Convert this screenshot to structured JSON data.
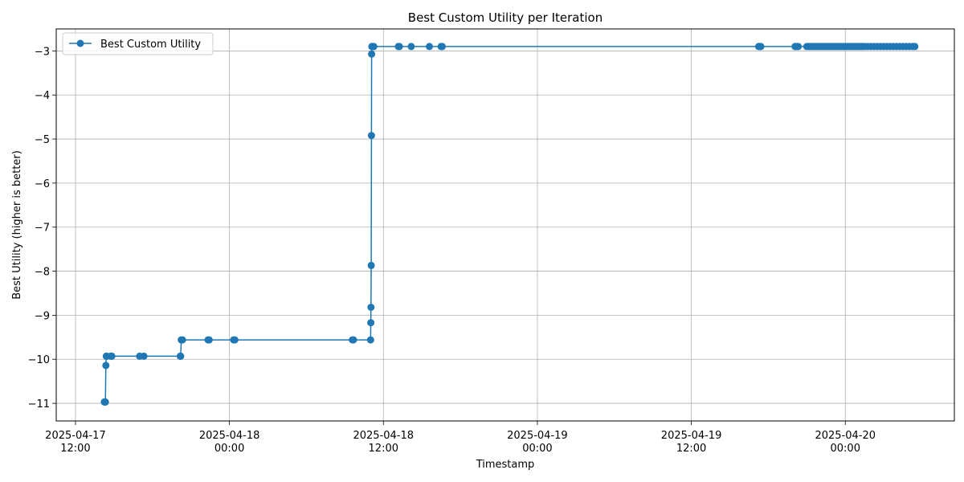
{
  "chart_data": {
    "type": "line",
    "title": "Best Custom Utility per Iteration",
    "xlabel": "Timestamp",
    "ylabel": "Best Utility (higher is better)",
    "x_axis_type": "datetime",
    "xlim": [
      "2025-04-17T10:30",
      "2025-04-20T08:30"
    ],
    "ylim": [
      -11.4,
      -2.5
    ],
    "grid": true,
    "legend_position": "top-left",
    "color": "#1f77b4",
    "x_ticks": [
      {
        "value": "2025-04-17T12:00",
        "line1": "2025-04-17",
        "line2": "12:00"
      },
      {
        "value": "2025-04-18T00:00",
        "line1": "2025-04-18",
        "line2": "00:00"
      },
      {
        "value": "2025-04-18T12:00",
        "line1": "2025-04-18",
        "line2": "12:00"
      },
      {
        "value": "2025-04-19T00:00",
        "line1": "2025-04-19",
        "line2": "00:00"
      },
      {
        "value": "2025-04-19T12:00",
        "line1": "2025-04-19",
        "line2": "12:00"
      },
      {
        "value": "2025-04-20T00:00",
        "line1": "2025-04-20",
        "line2": "00:00"
      }
    ],
    "y_ticks": [
      {
        "value": -11,
        "label": "−11"
      },
      {
        "value": -10,
        "label": "−10"
      },
      {
        "value": -9,
        "label": "−9"
      },
      {
        "value": -8,
        "label": "−8"
      },
      {
        "value": -7,
        "label": "−7"
      },
      {
        "value": -6,
        "label": "−6"
      },
      {
        "value": -5,
        "label": "−5"
      },
      {
        "value": -4,
        "label": "−4"
      },
      {
        "value": -3,
        "label": "−3"
      }
    ],
    "series": [
      {
        "name": "Best Custom Utility",
        "x": [
          "2025-04-17T14:15",
          "2025-04-17T14:18",
          "2025-04-17T14:20",
          "2025-04-17T14:22",
          "2025-04-17T14:24",
          "2025-04-17T14:26",
          "2025-04-17T14:45",
          "2025-04-17T14:50",
          "2025-04-17T17:00",
          "2025-04-17T17:20",
          "2025-04-17T20:10",
          "2025-04-17T20:12",
          "2025-04-17T20:15",
          "2025-04-17T20:20",
          "2025-04-17T22:20",
          "2025-04-17T22:25",
          "2025-04-18T00:20",
          "2025-04-18T00:25",
          "2025-04-18T09:35",
          "2025-04-18T09:40",
          "2025-04-18T11:00",
          "2025-04-18T11:01",
          "2025-04-18T11:02",
          "2025-04-18T11:03",
          "2025-04-18T11:04",
          "2025-04-18T11:05",
          "2025-04-18T11:06",
          "2025-04-18T11:07",
          "2025-04-18T11:10",
          "2025-04-18T11:15",
          "2025-04-18T13:10",
          "2025-04-18T13:15",
          "2025-04-18T14:10",
          "2025-04-18T15:35",
          "2025-04-18T16:30",
          "2025-04-18T16:35",
          "2025-04-19T17:15",
          "2025-04-19T17:20",
          "2025-04-19T17:25",
          "2025-04-19T20:05",
          "2025-04-19T20:10",
          "2025-04-19T20:15",
          "2025-04-19T20:20",
          "2025-04-19T21:00",
          "2025-04-19T21:10",
          "2025-04-19T21:20",
          "2025-04-19T21:30",
          "2025-04-19T21:40",
          "2025-04-19T21:50",
          "2025-04-19T22:00",
          "2025-04-19T22:10",
          "2025-04-19T22:20",
          "2025-04-19T22:30",
          "2025-04-19T22:40",
          "2025-04-19T22:50",
          "2025-04-19T23:00",
          "2025-04-19T23:10",
          "2025-04-19T23:20",
          "2025-04-19T23:30",
          "2025-04-19T23:40",
          "2025-04-19T23:50",
          "2025-04-20T00:00",
          "2025-04-20T00:10",
          "2025-04-20T00:20",
          "2025-04-20T00:30",
          "2025-04-20T00:40",
          "2025-04-20T00:50",
          "2025-04-20T01:00",
          "2025-04-20T01:10",
          "2025-04-20T01:20",
          "2025-04-20T01:30",
          "2025-04-20T01:45",
          "2025-04-20T02:00",
          "2025-04-20T02:15",
          "2025-04-20T02:30",
          "2025-04-20T02:45",
          "2025-04-20T03:00",
          "2025-04-20T03:15",
          "2025-04-20T03:30",
          "2025-04-20T03:45",
          "2025-04-20T04:00",
          "2025-04-20T04:15",
          "2025-04-20T04:30",
          "2025-04-20T04:45",
          "2025-04-20T05:00",
          "2025-04-20T05:15",
          "2025-04-20T05:25"
        ],
        "y": [
          -10.97,
          -10.97,
          -10.97,
          -10.14,
          -9.93,
          -9.93,
          -9.93,
          -9.93,
          -9.93,
          -9.93,
          -9.93,
          -9.93,
          -9.56,
          -9.56,
          -9.56,
          -9.56,
          -9.56,
          -9.56,
          -9.56,
          -9.56,
          -9.56,
          -9.17,
          -8.82,
          -7.87,
          -4.92,
          -3.07,
          -2.9,
          -2.9,
          -2.9,
          -2.9,
          -2.9,
          -2.9,
          -2.9,
          -2.9,
          -2.9,
          -2.9,
          -2.9,
          -2.9,
          -2.9,
          -2.9,
          -2.9,
          -2.9,
          -2.9,
          -2.9,
          -2.9,
          -2.9,
          -2.9,
          -2.9,
          -2.9,
          -2.9,
          -2.9,
          -2.9,
          -2.9,
          -2.9,
          -2.9,
          -2.9,
          -2.9,
          -2.9,
          -2.9,
          -2.9,
          -2.9,
          -2.9,
          -2.9,
          -2.9,
          -2.9,
          -2.9,
          -2.9,
          -2.9,
          -2.9,
          -2.9,
          -2.9,
          -2.9,
          -2.9,
          -2.9,
          -2.9,
          -2.9,
          -2.9,
          -2.9,
          -2.9,
          -2.9,
          -2.9,
          -2.9,
          -2.9,
          -2.9,
          -2.9,
          -2.9,
          -2.9
        ]
      }
    ]
  }
}
